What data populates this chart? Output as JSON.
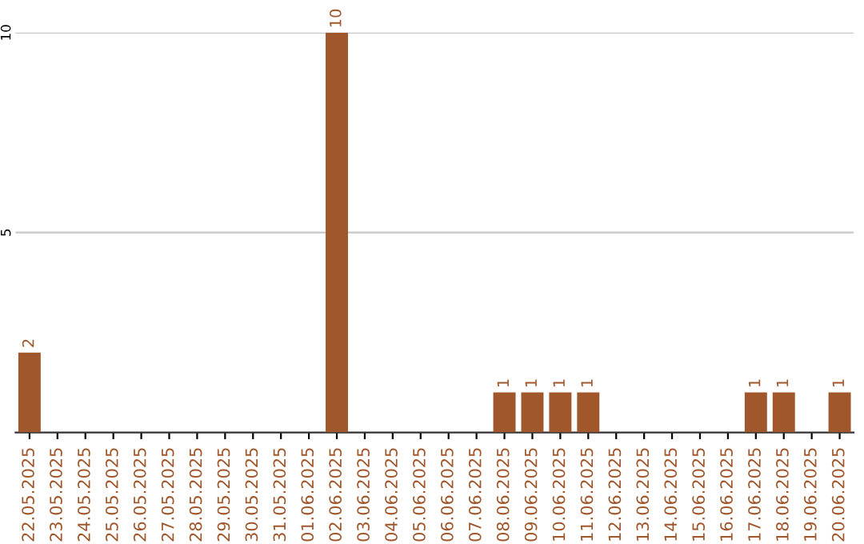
{
  "chart_data": {
    "type": "bar",
    "categories": [
      "22.05.2025",
      "23.05.2025",
      "24.05.2025",
      "25.05.2025",
      "26.05.2025",
      "27.05.2025",
      "28.05.2025",
      "29.05.2025",
      "30.05.2025",
      "31.05.2025",
      "01.06.2025",
      "02.06.2025",
      "03.06.2025",
      "04.06.2025",
      "05.06.2025",
      "06.06.2025",
      "07.06.2025",
      "08.06.2025",
      "09.06.2025",
      "10.06.2025",
      "11.06.2025",
      "12.06.2025",
      "13.06.2025",
      "14.06.2025",
      "15.06.2025",
      "16.06.2025",
      "17.06.2025",
      "18.06.2025",
      "19.06.2025",
      "20.06.2025"
    ],
    "values": [
      2,
      0,
      0,
      0,
      0,
      0,
      0,
      0,
      0,
      0,
      0,
      10,
      0,
      0,
      0,
      0,
      0,
      1,
      1,
      1,
      1,
      0,
      0,
      0,
      0,
      0,
      1,
      1,
      0,
      1
    ],
    "value_labels": [
      "2",
      null,
      null,
      null,
      null,
      null,
      null,
      null,
      null,
      null,
      null,
      "10",
      null,
      null,
      null,
      null,
      null,
      "1",
      "1",
      "1",
      "1",
      null,
      null,
      null,
      null,
      null,
      "1",
      "1",
      null,
      "1"
    ],
    "color": "#a0572b",
    "ylim": [
      0,
      10
    ],
    "yticks": [
      5,
      10
    ],
    "grid": "y"
  }
}
